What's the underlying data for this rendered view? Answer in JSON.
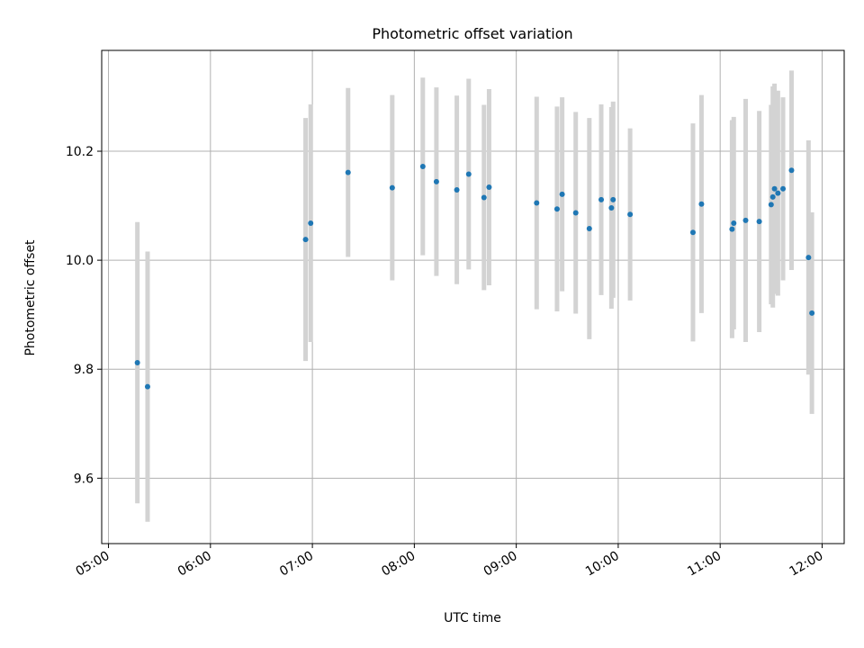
{
  "chart_data": {
    "type": "scatter",
    "title": "Photometric offset variation",
    "xlabel": "UTC time",
    "ylabel": "Photometric offset",
    "x_tick_labels": [
      "05:00",
      "06:00",
      "07:00",
      "08:00",
      "09:00",
      "10:00",
      "11:00",
      "12:00"
    ],
    "y_tick_labels": [
      "9.6",
      "9.8",
      "10.0",
      "10.2"
    ],
    "xlim": [
      "04:56",
      "12:13"
    ],
    "ylim": [
      9.48,
      10.385
    ],
    "grid": true,
    "colors": {
      "point": "#1f77b4",
      "errorbar": "#d3d3d3",
      "grid": "#b0b0b0",
      "axes": "#000000"
    },
    "points": [
      {
        "t": "05:17",
        "y": 9.812,
        "err": 0.258
      },
      {
        "t": "05:23",
        "y": 9.768,
        "err": 0.248
      },
      {
        "t": "06:56",
        "y": 10.038,
        "err": 0.223
      },
      {
        "t": "06:59",
        "y": 10.068,
        "err": 0.218
      },
      {
        "t": "07:21",
        "y": 10.161,
        "err": 0.155
      },
      {
        "t": "07:47",
        "y": 10.133,
        "err": 0.17
      },
      {
        "t": "08:05",
        "y": 10.172,
        "err": 0.163
      },
      {
        "t": "08:13",
        "y": 10.144,
        "err": 0.173
      },
      {
        "t": "08:25",
        "y": 10.129,
        "err": 0.173
      },
      {
        "t": "08:32",
        "y": 10.158,
        "err": 0.175
      },
      {
        "t": "08:41",
        "y": 10.115,
        "err": 0.17
      },
      {
        "t": "08:44",
        "y": 10.134,
        "err": 0.18
      },
      {
        "t": "09:12",
        "y": 10.105,
        "err": 0.195
      },
      {
        "t": "09:24",
        "y": 10.094,
        "err": 0.188
      },
      {
        "t": "09:27",
        "y": 10.121,
        "err": 0.178
      },
      {
        "t": "09:35",
        "y": 10.087,
        "err": 0.185
      },
      {
        "t": "09:43",
        "y": 10.058,
        "err": 0.203
      },
      {
        "t": "09:50",
        "y": 10.111,
        "err": 0.175
      },
      {
        "t": "09:56",
        "y": 10.096,
        "err": 0.185
      },
      {
        "t": "09:57",
        "y": 10.111,
        "err": 0.18
      },
      {
        "t": "10:07",
        "y": 10.084,
        "err": 0.158
      },
      {
        "t": "10:44",
        "y": 10.051,
        "err": 0.2
      },
      {
        "t": "10:49",
        "y": 10.103,
        "err": 0.2
      },
      {
        "t": "11:07",
        "y": 10.057,
        "err": 0.2
      },
      {
        "t": "11:08",
        "y": 10.068,
        "err": 0.195
      },
      {
        "t": "11:15",
        "y": 10.073,
        "err": 0.223
      },
      {
        "t": "11:23",
        "y": 10.071,
        "err": 0.203
      },
      {
        "t": "11:30",
        "y": 10.102,
        "err": 0.183
      },
      {
        "t": "11:31",
        "y": 10.116,
        "err": 0.203
      },
      {
        "t": "11:32",
        "y": 10.131,
        "err": 0.193
      },
      {
        "t": "11:34",
        "y": 10.123,
        "err": 0.188
      },
      {
        "t": "11:37",
        "y": 10.131,
        "err": 0.168
      },
      {
        "t": "11:42",
        "y": 10.165,
        "err": 0.183
      },
      {
        "t": "11:52",
        "y": 10.005,
        "err": 0.215
      },
      {
        "t": "11:54",
        "y": 9.903,
        "err": 0.185
      }
    ]
  }
}
